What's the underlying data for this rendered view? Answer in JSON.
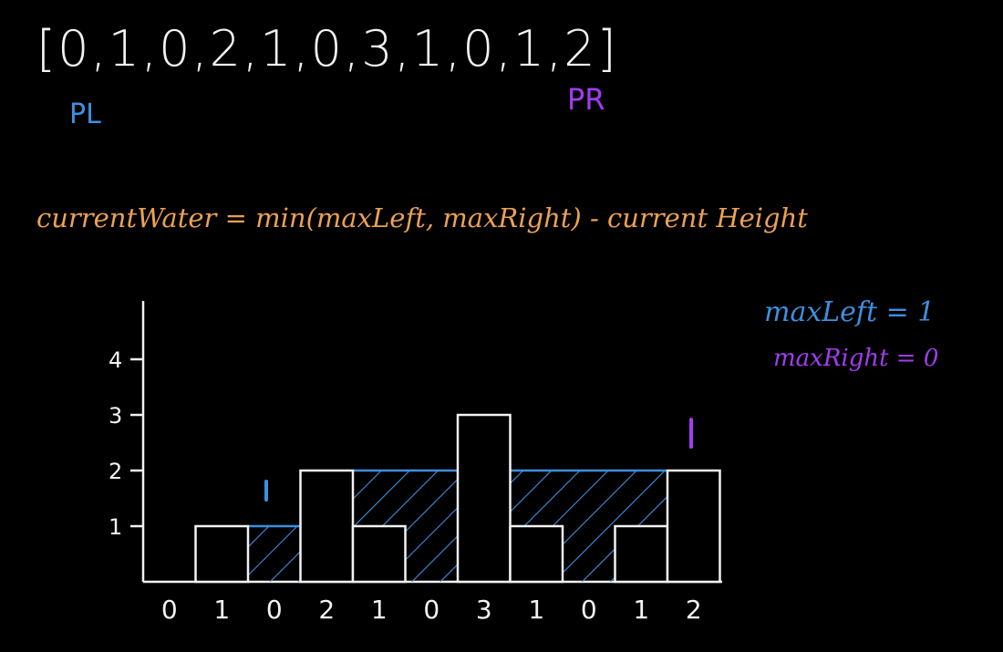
{
  "heights_text": "[0,1,0,2,1,0,3,1,0,1,2]",
  "pointer_left_label": "PL",
  "pointer_right_label": "PR",
  "formula": "currentWater = min(maxLeft, maxRight) - current Height",
  "max_left_text": "maxLeft = 1",
  "max_right_text": "maxRight = 0",
  "colors": {
    "ink": "#f2f2f2",
    "left": "#3f8fe0",
    "right": "#a23cf0",
    "formula": "#eba154"
  },
  "chart_data": {
    "type": "bar",
    "categories": [
      "0",
      "1",
      "0",
      "2",
      "1",
      "0",
      "3",
      "1",
      "0",
      "1",
      "2"
    ],
    "values": [
      0,
      1,
      0,
      2,
      1,
      0,
      3,
      1,
      0,
      1,
      2
    ],
    "water_level": [
      0,
      1,
      1,
      2,
      2,
      2,
      3,
      2,
      2,
      2,
      2
    ],
    "y_ticks": [
      "1",
      "2",
      "3",
      "4"
    ],
    "ylim": [
      0,
      4
    ],
    "pointer_left_index": 2,
    "pointer_right_index": 10
  }
}
